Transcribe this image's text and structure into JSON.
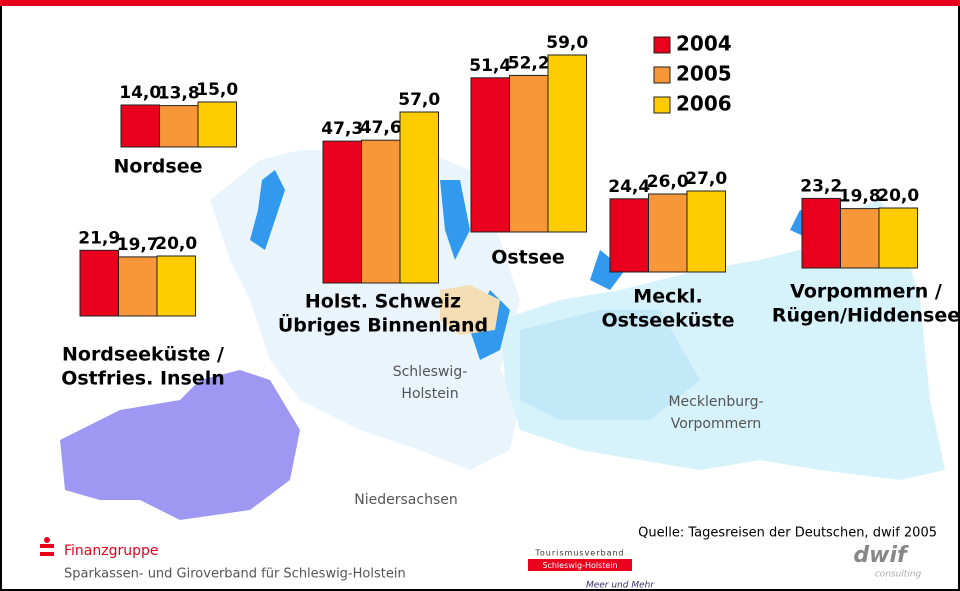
{
  "chart_data": {
    "type": "bar",
    "categories": [
      [
        "Nordsee"
      ],
      [
        "Nordseeküste /",
        "Ostfries. Inseln"
      ],
      [
        "Holst. Schweiz",
        "Übriges Binnenland"
      ],
      [
        "Ostsee"
      ],
      [
        "Meckl.",
        "Ostseeküste"
      ],
      [
        "Vorpommern /",
        "Rügen/Hiddensee"
      ]
    ],
    "series": [
      {
        "name": "2004",
        "color": "#e8001c",
        "values": [
          14.0,
          21.9,
          47.3,
          51.4,
          24.4,
          23.2
        ],
        "value_labels": [
          "14,0",
          "21,9",
          "47,3",
          "51,4",
          "24,4",
          "23,2"
        ]
      },
      {
        "name": "2005",
        "color": "#f7973a",
        "values": [
          13.8,
          19.7,
          47.6,
          52.2,
          26.0,
          19.8
        ],
        "value_labels": [
          "13,8",
          "19,7",
          "47,6",
          "52,2",
          "26,0",
          "19,8"
        ]
      },
      {
        "name": "2006",
        "color": "#ffcc00",
        "values": [
          15.0,
          20.0,
          57.0,
          59.0,
          27.0,
          20.0
        ],
        "value_labels": [
          "15,0",
          "20,0",
          "57,0",
          "59,0",
          "27,0",
          "20,0"
        ]
      }
    ],
    "legend": "top-right"
  },
  "map_labels": [
    [
      "Schleswig-",
      "Holstein"
    ],
    [
      "Mecklenburg-",
      "Vorpommern"
    ],
    [
      "Niedersachsen"
    ]
  ],
  "source": "Quelle: Tagesreisen der Deutschen, dwif 2005",
  "footer": {
    "brand": "Finanzgruppe",
    "org": "Sparkassen- und Giroverband für Schleswig-Holstein",
    "tourism_line1": "Tourismusverband",
    "tourism_line2": "Schleswig-Holstein",
    "tourism_slogan": "Meer und Mehr",
    "dwif": "dwif",
    "dwif_sub": "consulting"
  }
}
